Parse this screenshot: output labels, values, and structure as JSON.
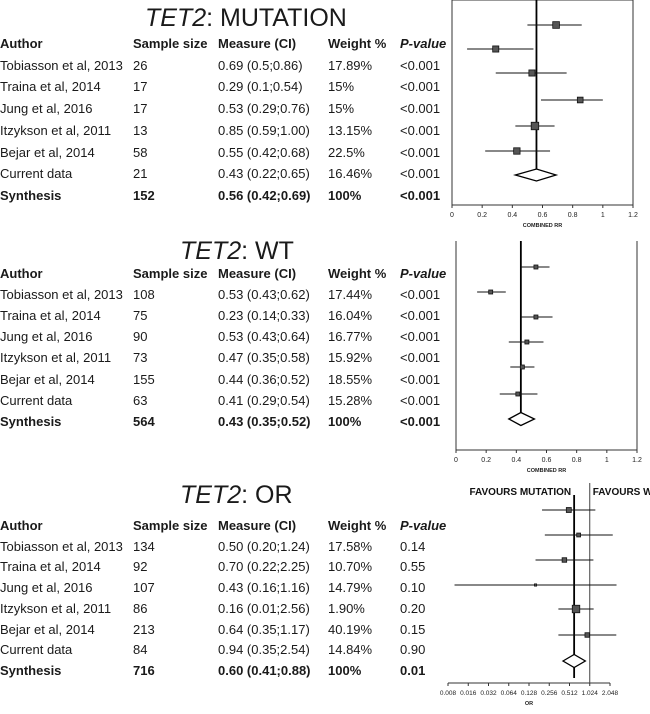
{
  "columns": [
    "Author",
    "Sample size",
    "Measure (CI)",
    "Weight %",
    "P-value"
  ],
  "panels": [
    {
      "title_gene": "TET2",
      "title_rest": ": MUTATION",
      "rows": [
        {
          "author": "Tobiasson et al, 2013",
          "n": "26",
          "measure": "0.69 (0.5;0.86)",
          "weight": "17.89%",
          "p": "<0.001"
        },
        {
          "author": "Traina et al, 2014",
          "n": "17",
          "measure": "0.29 (0.1;0.54)",
          "weight": "15%",
          "p": "<0.001"
        },
        {
          "author": "Jung et al, 2016",
          "n": "17",
          "measure": "0.53 (0.29;0.76)",
          "weight": "15%",
          "p": "<0.001"
        },
        {
          "author": "Itzykson et al, 2011",
          "n": "13",
          "measure": "0.85 (0.59;1.00)",
          "weight": "13.15%",
          "p": "<0.001"
        },
        {
          "author": "Bejar et al, 2014",
          "n": "58",
          "measure": "0.55 (0.42;0.68)",
          "weight": "22.5%",
          "p": "<0.001"
        },
        {
          "author": "Current data",
          "n": "21",
          "measure": "0.43 (0.22;0.65)",
          "weight": "16.46%",
          "p": "<0.001"
        }
      ],
      "synthesis": {
        "author": "Synthesis",
        "n": "152",
        "measure": "0.56 (0.42;0.69)",
        "weight": "100%",
        "p": "<0.001"
      }
    },
    {
      "title_gene": "TET2",
      "title_rest": ": WT",
      "rows": [
        {
          "author": "Tobiasson et al, 2013",
          "n": "108",
          "measure": "0.53 (0.43;0.62)",
          "weight": "17.44%",
          "p": "<0.001"
        },
        {
          "author": "Traina et al, 2014",
          "n": "75",
          "measure": "0.23 (0.14;0.33)",
          "weight": "16.04%",
          "p": "<0.001"
        },
        {
          "author": "Jung et al, 2016",
          "n": "90",
          "measure": "0.53 (0.43;0.64)",
          "weight": "16.77%",
          "p": "<0.001"
        },
        {
          "author": "Itzykson et al, 2011",
          "n": "73",
          "measure": "0.47 (0.35;0.58)",
          "weight": "15.92%",
          "p": "<0.001"
        },
        {
          "author": "Bejar et al, 2014",
          "n": "155",
          "measure": "0.44 (0.36;0.52)",
          "weight": "18.55%",
          "p": "<0.001"
        },
        {
          "author": "Current data",
          "n": "63",
          "measure": "0.41 (0.29;0.54)",
          "weight": "15.28%",
          "p": "<0.001"
        }
      ],
      "synthesis": {
        "author": "Synthesis",
        "n": "564",
        "measure": "0.43 (0.35;0.52)",
        "weight": "100%",
        "p": "<0.001"
      }
    },
    {
      "title_gene": "TET2",
      "title_rest": ": OR",
      "rows": [
        {
          "author": "Tobiasson et al, 2013",
          "n": "134",
          "measure": "0.50 (0.20;1.24)",
          "weight": "17.58%",
          "p": "0.14"
        },
        {
          "author": "Traina et al, 2014",
          "n": "92",
          "measure": "0.70 (0.22;2.25)",
          "weight": "10.70%",
          "p": "0.55"
        },
        {
          "author": "Jung et al, 2016",
          "n": "107",
          "measure": "0.43 (0.16;1.16)",
          "weight": "14.79%",
          "p": "0.10"
        },
        {
          "author": "Itzykson et al, 2011",
          "n": "86",
          "measure": "0.16 (0.01;2.56)",
          "weight": "1.90%",
          "p": "0.20"
        },
        {
          "author": "Bejar et al, 2014",
          "n": "213",
          "measure": "0.64 (0.35;1.17)",
          "weight": "40.19%",
          "p": "0.15"
        },
        {
          "author": "Current data",
          "n": "84",
          "measure": "0.94 (0.35;2.54)",
          "weight": "14.84%",
          "p": "0.90"
        }
      ],
      "synthesis": {
        "author": "Synthesis",
        "n": "716",
        "measure": "0.60 (0.41;0.88)",
        "weight": "100%",
        "p": "0.01"
      }
    }
  ],
  "chart_data": [
    {
      "type": "forest",
      "scale": "linear",
      "xlabel": "COMBINED RR",
      "xlim": [
        0,
        1.2
      ],
      "ticks": [
        "0",
        "0.2",
        "0.4",
        "0.6",
        "0.8",
        "1",
        "1.2"
      ],
      "tick_values": [
        0,
        0.2,
        0.4,
        0.6,
        0.8,
        1,
        1.2
      ],
      "reference": null,
      "favours_left": "",
      "favours_right": "",
      "studies": [
        {
          "est": 0.69,
          "lo": 0.5,
          "hi": 0.86,
          "weight": 17.89
        },
        {
          "est": 0.29,
          "lo": 0.1,
          "hi": 0.54,
          "weight": 15
        },
        {
          "est": 0.53,
          "lo": 0.29,
          "hi": 0.76,
          "weight": 15
        },
        {
          "est": 0.85,
          "lo": 0.59,
          "hi": 1.0,
          "weight": 13.15
        },
        {
          "est": 0.55,
          "lo": 0.42,
          "hi": 0.68,
          "weight": 22.5
        },
        {
          "est": 0.43,
          "lo": 0.22,
          "hi": 0.65,
          "weight": 16.46
        }
      ],
      "pooled": {
        "est": 0.56,
        "lo": 0.42,
        "hi": 0.69
      }
    },
    {
      "type": "forest",
      "scale": "linear",
      "xlabel": "COMBINED RR",
      "xlim": [
        0,
        1.2
      ],
      "ticks": [
        "0",
        "0.2",
        "0.4",
        "0.6",
        "0.8",
        "1",
        "1.2"
      ],
      "tick_values": [
        0,
        0.2,
        0.4,
        0.6,
        0.8,
        1,
        1.2
      ],
      "reference": null,
      "favours_left": "",
      "favours_right": "",
      "studies": [
        {
          "est": 0.53,
          "lo": 0.43,
          "hi": 0.62,
          "weight": 17.44
        },
        {
          "est": 0.23,
          "lo": 0.14,
          "hi": 0.33,
          "weight": 16.04
        },
        {
          "est": 0.53,
          "lo": 0.43,
          "hi": 0.64,
          "weight": 16.77
        },
        {
          "est": 0.47,
          "lo": 0.35,
          "hi": 0.58,
          "weight": 15.92
        },
        {
          "est": 0.44,
          "lo": 0.36,
          "hi": 0.52,
          "weight": 18.55
        },
        {
          "est": 0.41,
          "lo": 0.29,
          "hi": 0.54,
          "weight": 15.28
        }
      ],
      "pooled": {
        "est": 0.43,
        "lo": 0.35,
        "hi": 0.52
      }
    },
    {
      "type": "forest",
      "scale": "log2",
      "xlabel": "OR",
      "xlim": [
        0.008,
        2.048
      ],
      "ticks": [
        "0.008",
        "0.016",
        "0.032",
        "0.064",
        "0.128",
        "0.256",
        "0.512",
        "1.024",
        "2.048"
      ],
      "tick_values": [
        0.008,
        0.016,
        0.032,
        0.064,
        0.128,
        0.256,
        0.512,
        1.024,
        2.048
      ],
      "reference": 1.024,
      "favours_left": "FAVOURS MUTATION",
      "favours_right": "FAVOURS WT",
      "studies": [
        {
          "est": 0.5,
          "lo": 0.2,
          "hi": 1.24,
          "weight": 17.58
        },
        {
          "est": 0.7,
          "lo": 0.22,
          "hi": 2.25,
          "weight": 10.7
        },
        {
          "est": 0.43,
          "lo": 0.16,
          "hi": 1.16,
          "weight": 14.79
        },
        {
          "est": 0.16,
          "lo": 0.01,
          "hi": 2.56,
          "weight": 1.9
        },
        {
          "est": 0.64,
          "lo": 0.35,
          "hi": 1.17,
          "weight": 40.19
        },
        {
          "est": 0.94,
          "lo": 0.35,
          "hi": 2.54,
          "weight": 14.84
        }
      ],
      "pooled": {
        "est": 0.6,
        "lo": 0.41,
        "hi": 0.88
      }
    }
  ]
}
